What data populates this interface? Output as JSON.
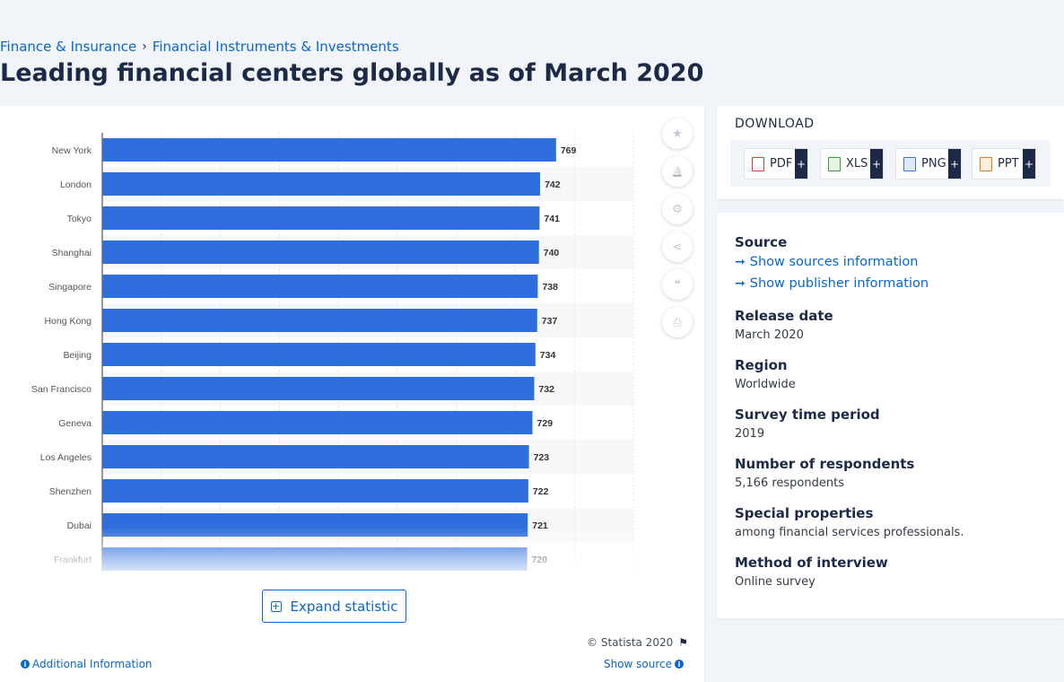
{
  "breadcrumb": {
    "items": [
      "Finance & Insurance",
      "Financial Instruments & Investments"
    ],
    "separator": "›"
  },
  "page_title": "Leading financial centers globally as of March 2020",
  "chart_data": {
    "type": "bar",
    "orientation": "horizontal",
    "categories": [
      "New York",
      "London",
      "Tokyo",
      "Shanghai",
      "Singapore",
      "Hong Kong",
      "Beijing",
      "San Francisco",
      "Geneva",
      "Los Angeles",
      "Shenzhen",
      "Dubai",
      "Frankfurt"
    ],
    "values": [
      769,
      742,
      741,
      740,
      738,
      737,
      734,
      732,
      729,
      723,
      722,
      721,
      720
    ],
    "title": "",
    "xlabel": "",
    "ylabel": "",
    "xlim": [
      0,
      900
    ],
    "bar_color": "#2f6fdd",
    "grid": true
  },
  "tools": {
    "icons": [
      "star-icon",
      "bell-icon",
      "gear-icon",
      "share-icon",
      "quote-icon",
      "print-icon"
    ],
    "glyphs": [
      "★",
      "🔔",
      "⚙",
      "⋖",
      "❝",
      "⎙"
    ]
  },
  "expand_label": "Expand statistic",
  "copyright": "© Statista 2020",
  "additional_info": "Additional Information",
  "show_source": "Show source",
  "download": {
    "title": "DOWNLOAD",
    "buttons": [
      {
        "label": "PDF",
        "color": "#d93a3a"
      },
      {
        "label": "XLS",
        "color": "#3a9a3a"
      },
      {
        "label": "PNG",
        "color": "#3a6fd9"
      },
      {
        "label": "PPT",
        "color": "#e07a2a"
      }
    ],
    "plus": "+"
  },
  "info": {
    "source_label": "Source",
    "show_sources": "Show sources information",
    "show_publisher": "Show publisher information",
    "release_date_label": "Release date",
    "release_date": "March 2020",
    "region_label": "Region",
    "region": "Worldwide",
    "survey_period_label": "Survey time period",
    "survey_period": "2019",
    "respondents_label": "Number of respondents",
    "respondents": "5,166 respondents",
    "special_label": "Special properties",
    "special": "among financial services professionals.",
    "method_label": "Method of interview",
    "method": "Online survey"
  }
}
